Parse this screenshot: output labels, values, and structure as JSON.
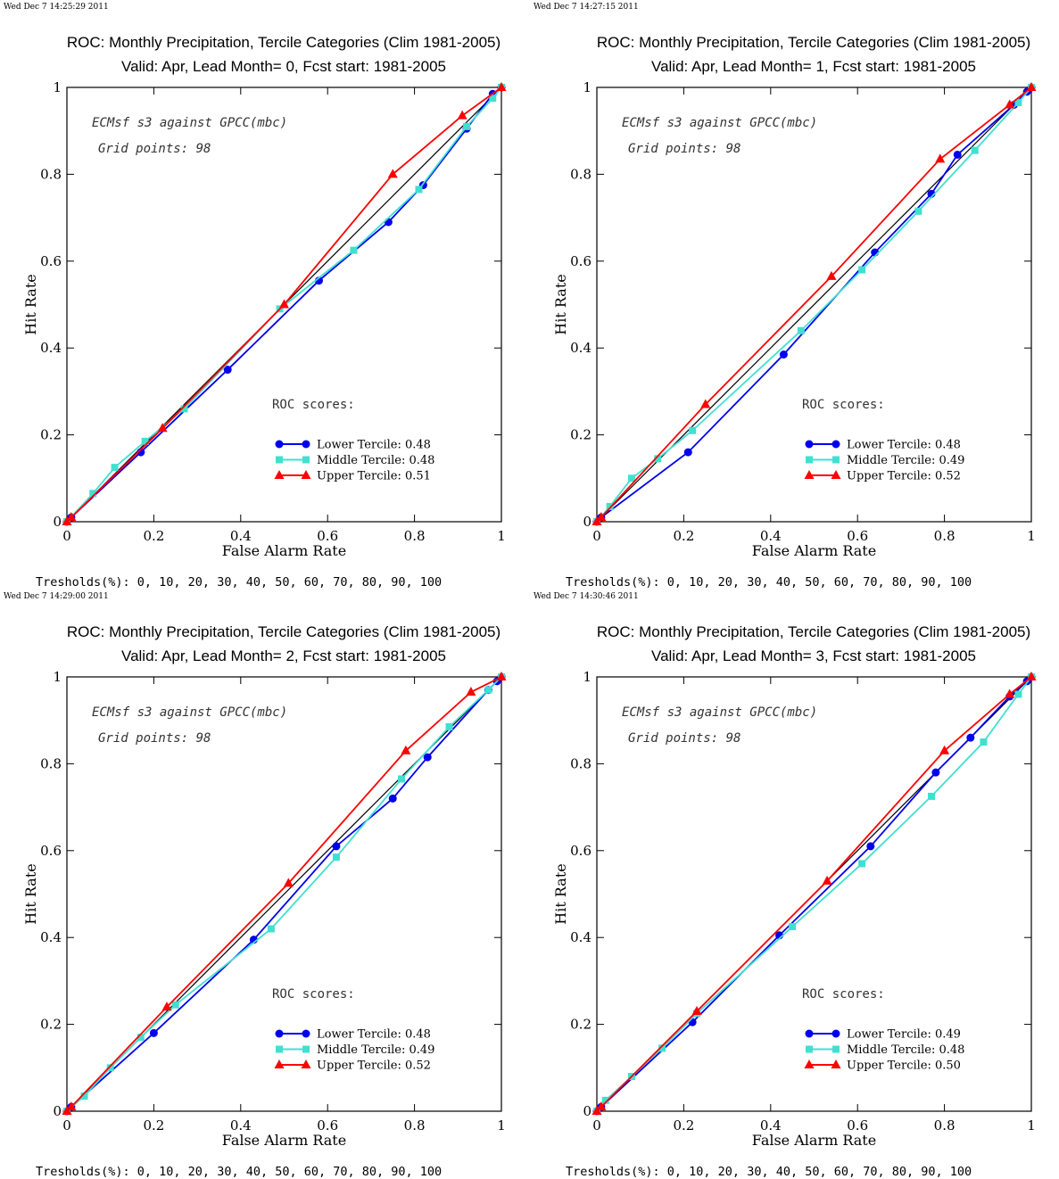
{
  "colors": {
    "lower": "#0000ee",
    "middle": "#40e0d0",
    "upper": "#ff0000",
    "diagonal": "#000000"
  },
  "chart_data": [
    {
      "type": "line",
      "timestamp": "Wed Dec  7 14:25:29 2011",
      "title": "ROC: Monthly Precipitation, Tercile Categories (Clim 1981-2005)",
      "subtitle": "Valid: Apr, Lead Month= 0, Fcst start: 1981-2005",
      "xlabel": "False Alarm Rate",
      "ylabel": "Hit Rate",
      "xlim": [
        0,
        1
      ],
      "ylim": [
        0,
        1
      ],
      "x_ticks": [
        "0",
        "0.2",
        "0.4",
        "0.6",
        "0.8",
        "1"
      ],
      "y_ticks": [
        "0",
        "0.2",
        "0.4",
        "0.6",
        "0.8",
        "1"
      ],
      "annotation_model": "ECMsf s3 against GPCC(mbc)",
      "annotation_grid": "Grid points:   98",
      "scores_heading": "ROC scores:",
      "thresholds": "Tresholds(%): 0, 10, 20, 30, 40, 50, 60, 70, 80, 90, 100",
      "series": [
        {
          "name": "Lower Tercile: 0.48",
          "key": "lower",
          "marker": "circle",
          "x": [
            0,
            0.01,
            0.17,
            0.37,
            0.58,
            0.74,
            0.82,
            0.92,
            0.98,
            1
          ],
          "y": [
            0,
            0.01,
            0.16,
            0.35,
            0.555,
            0.69,
            0.775,
            0.905,
            0.985,
            1
          ]
        },
        {
          "name": "Middle Tercile: 0.48",
          "key": "middle",
          "marker": "square",
          "x": [
            0,
            0.06,
            0.11,
            0.18,
            0.27,
            0.49,
            0.66,
            0.81,
            0.92,
            0.98,
            1
          ],
          "y": [
            0,
            0.065,
            0.125,
            0.185,
            0.26,
            0.49,
            0.625,
            0.765,
            0.91,
            0.975,
            1
          ]
        },
        {
          "name": "Upper Tercile: 0.51",
          "key": "upper",
          "marker": "triangle",
          "x": [
            0,
            0.01,
            0.22,
            0.5,
            0.75,
            0.91,
            1
          ],
          "y": [
            0,
            0.01,
            0.215,
            0.5,
            0.8,
            0.935,
            1
          ]
        }
      ]
    },
    {
      "type": "line",
      "timestamp": "Wed Dec  7 14:27:15 2011",
      "title": "ROC: Monthly Precipitation, Tercile Categories (Clim 1981-2005)",
      "subtitle": "Valid: Apr, Lead Month= 1, Fcst start: 1981-2005",
      "xlabel": "False Alarm Rate",
      "ylabel": "Hit Rate",
      "xlim": [
        0,
        1
      ],
      "ylim": [
        0,
        1
      ],
      "x_ticks": [
        "0",
        "0.2",
        "0.4",
        "0.6",
        "0.8",
        "1"
      ],
      "y_ticks": [
        "0",
        "0.2",
        "0.4",
        "0.6",
        "0.8",
        "1"
      ],
      "annotation_model": "ECMsf s3 against GPCC(mbc)",
      "annotation_grid": "Grid points:   98",
      "scores_heading": "ROC scores:",
      "thresholds": "Tresholds(%): 0, 10, 20, 30, 40, 50, 60, 70, 80, 90, 100",
      "series": [
        {
          "name": "Lower Tercile: 0.48",
          "key": "lower",
          "marker": "circle",
          "x": [
            0,
            0.01,
            0.21,
            0.43,
            0.64,
            0.77,
            0.83,
            0.96,
            0.99,
            1
          ],
          "y": [
            0,
            0.01,
            0.16,
            0.385,
            0.62,
            0.755,
            0.845,
            0.96,
            0.99,
            1
          ]
        },
        {
          "name": "Middle Tercile: 0.49",
          "key": "middle",
          "marker": "square",
          "x": [
            0,
            0.03,
            0.08,
            0.14,
            0.22,
            0.47,
            0.61,
            0.74,
            0.87,
            0.97,
            1
          ],
          "y": [
            0,
            0.035,
            0.1,
            0.145,
            0.21,
            0.44,
            0.58,
            0.715,
            0.855,
            0.965,
            1
          ]
        },
        {
          "name": "Upper Tercile: 0.52",
          "key": "upper",
          "marker": "triangle",
          "x": [
            0,
            0.01,
            0.25,
            0.54,
            0.79,
            0.95,
            1
          ],
          "y": [
            0,
            0.01,
            0.27,
            0.565,
            0.835,
            0.96,
            1
          ]
        }
      ]
    },
    {
      "type": "line",
      "timestamp": "Wed Dec  7 14:29:00 2011",
      "title": "ROC: Monthly Precipitation, Tercile Categories (Clim 1981-2005)",
      "subtitle": "Valid: Apr, Lead Month= 2, Fcst start: 1981-2005",
      "xlabel": "False Alarm Rate",
      "ylabel": "Hit Rate",
      "xlim": [
        0,
        1
      ],
      "ylim": [
        0,
        1
      ],
      "x_ticks": [
        "0",
        "0.2",
        "0.4",
        "0.6",
        "0.8",
        "1"
      ],
      "y_ticks": [
        "0",
        "0.2",
        "0.4",
        "0.6",
        "0.8",
        "1"
      ],
      "annotation_model": "ECMsf s3 against GPCC(mbc)",
      "annotation_grid": "Grid points:   98",
      "scores_heading": "ROC scores:",
      "thresholds": "Tresholds(%): 0, 10, 20, 30, 40, 50, 60, 70, 80, 90, 100",
      "series": [
        {
          "name": "Lower Tercile: 0.48",
          "key": "lower",
          "marker": "circle",
          "x": [
            0,
            0.01,
            0.2,
            0.43,
            0.62,
            0.75,
            0.83,
            0.97,
            0.99,
            1
          ],
          "y": [
            0,
            0.01,
            0.18,
            0.395,
            0.61,
            0.72,
            0.815,
            0.97,
            0.99,
            1
          ]
        },
        {
          "name": "Middle Tercile: 0.49",
          "key": "middle",
          "marker": "square",
          "x": [
            0,
            0.04,
            0.1,
            0.17,
            0.25,
            0.47,
            0.62,
            0.77,
            0.88,
            0.97,
            1
          ],
          "y": [
            0,
            0.035,
            0.1,
            0.17,
            0.245,
            0.42,
            0.585,
            0.765,
            0.885,
            0.97,
            1
          ]
        },
        {
          "name": "Upper Tercile: 0.52",
          "key": "upper",
          "marker": "triangle",
          "x": [
            0,
            0.01,
            0.23,
            0.51,
            0.78,
            0.93,
            1
          ],
          "y": [
            0,
            0.01,
            0.24,
            0.525,
            0.83,
            0.965,
            1
          ]
        }
      ]
    },
    {
      "type": "line",
      "timestamp": "Wed Dec  7 14:30:46 2011",
      "title": "ROC: Monthly Precipitation, Tercile Categories (Clim 1981-2005)",
      "subtitle": "Valid: Apr, Lead Month= 3, Fcst start: 1981-2005",
      "xlabel": "False Alarm Rate",
      "ylabel": "Hit Rate",
      "xlim": [
        0,
        1
      ],
      "ylim": [
        0,
        1
      ],
      "x_ticks": [
        "0",
        "0.2",
        "0.4",
        "0.6",
        "0.8",
        "1"
      ],
      "y_ticks": [
        "0",
        "0.2",
        "0.4",
        "0.6",
        "0.8",
        "1"
      ],
      "annotation_model": "ECMsf s3 against GPCC(mbc)",
      "annotation_grid": "Grid points:   98",
      "scores_heading": "ROC scores:",
      "thresholds": "Tresholds(%): 0, 10, 20, 30, 40, 50, 60, 70, 80, 90, 100",
      "series": [
        {
          "name": "Lower Tercile: 0.49",
          "key": "lower",
          "marker": "circle",
          "x": [
            0,
            0.01,
            0.22,
            0.42,
            0.63,
            0.78,
            0.86,
            0.95,
            0.99,
            1
          ],
          "y": [
            0,
            0.01,
            0.205,
            0.405,
            0.61,
            0.78,
            0.86,
            0.955,
            0.99,
            1
          ]
        },
        {
          "name": "Middle Tercile: 0.48",
          "key": "middle",
          "marker": "square",
          "x": [
            0,
            0.02,
            0.08,
            0.15,
            0.23,
            0.45,
            0.61,
            0.77,
            0.89,
            0.97,
            1
          ],
          "y": [
            0,
            0.025,
            0.08,
            0.145,
            0.225,
            0.425,
            0.57,
            0.725,
            0.85,
            0.96,
            1
          ]
        },
        {
          "name": "Upper Tercile: 0.50",
          "key": "upper",
          "marker": "triangle",
          "x": [
            0,
            0.01,
            0.23,
            0.53,
            0.8,
            0.95,
            1
          ],
          "y": [
            0,
            0.01,
            0.23,
            0.53,
            0.83,
            0.96,
            1
          ]
        }
      ]
    }
  ]
}
